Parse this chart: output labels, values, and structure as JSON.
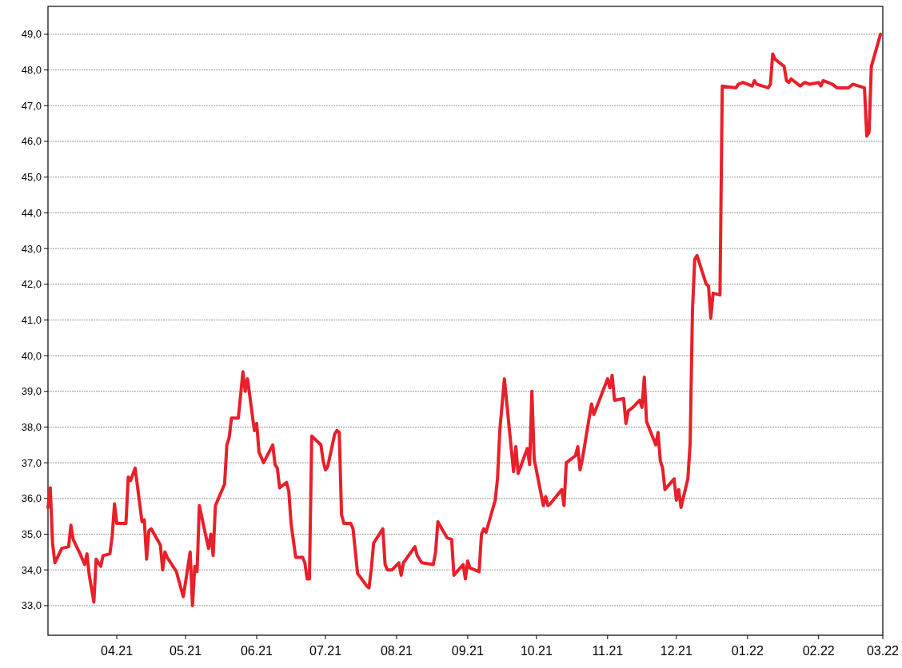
{
  "chart_data": {
    "type": "line",
    "x": [
      "2021-03-02",
      "2021-03-03",
      "2021-03-04",
      "2021-03-05",
      "2021-03-08",
      "2021-03-11",
      "2021-03-12",
      "2021-03-13",
      "2021-03-16",
      "2021-03-18",
      "2021-03-19",
      "2021-03-20",
      "2021-03-22",
      "2021-03-23",
      "2021-03-25",
      "2021-03-26",
      "2021-03-29",
      "2021-03-30",
      "2021-03-31",
      "2021-04-01",
      "2021-04-05",
      "2021-04-06",
      "2021-04-07",
      "2021-04-09",
      "2021-04-12",
      "2021-04-13",
      "2021-04-14",
      "2021-04-15",
      "2021-04-16",
      "2021-04-20",
      "2021-04-21",
      "2021-04-22",
      "2021-04-23",
      "2021-04-26",
      "2021-04-27",
      "2021-04-30",
      "2021-05-03",
      "2021-05-04",
      "2021-05-05",
      "2021-05-06",
      "2021-05-07",
      "2021-05-11",
      "2021-05-12",
      "2021-05-13",
      "2021-05-14",
      "2021-05-18",
      "2021-05-19",
      "2021-05-20",
      "2021-05-21",
      "2021-05-24",
      "2021-05-26",
      "2021-05-27",
      "2021-05-28",
      "2021-05-31",
      "2021-06-01",
      "2021-06-02",
      "2021-06-04",
      "2021-06-08",
      "2021-06-09",
      "2021-06-10",
      "2021-06-11",
      "2021-06-14",
      "2021-06-15",
      "2021-06-16",
      "2021-06-18",
      "2021-06-21",
      "2021-06-22",
      "2021-06-23",
      "2021-06-24",
      "2021-06-25",
      "2021-06-29",
      "2021-06-30",
      "2021-07-01",
      "2021-07-02",
      "2021-07-05",
      "2021-07-06",
      "2021-07-07",
      "2021-07-08",
      "2021-07-09",
      "2021-07-12",
      "2021-07-13",
      "2021-07-15",
      "2021-07-19",
      "2021-07-20",
      "2021-07-21",
      "2021-07-22",
      "2021-07-26",
      "2021-07-27",
      "2021-07-28",
      "2021-07-30",
      "2021-08-02",
      "2021-08-03",
      "2021-08-04",
      "2021-08-09",
      "2021-08-10",
      "2021-08-12",
      "2021-08-17",
      "2021-08-18",
      "2021-08-19",
      "2021-08-23",
      "2021-08-25",
      "2021-08-26",
      "2021-08-30",
      "2021-08-31",
      "2021-09-01",
      "2021-09-02",
      "2021-09-06",
      "2021-09-07",
      "2021-09-08",
      "2021-09-09",
      "2021-09-13",
      "2021-09-14",
      "2021-09-15",
      "2021-09-17",
      "2021-09-21",
      "2021-09-22",
      "2021-09-23",
      "2021-09-27",
      "2021-09-28",
      "2021-09-29",
      "2021-09-30",
      "2021-10-04",
      "2021-10-05",
      "2021-10-06",
      "2021-10-07",
      "2021-10-12",
      "2021-10-13",
      "2021-10-14",
      "2021-10-18",
      "2021-10-19",
      "2021-10-20",
      "2021-10-21",
      "2021-10-25",
      "2021-10-26",
      "2021-11-01",
      "2021-11-02",
      "2021-11-03",
      "2021-11-04",
      "2021-11-08",
      "2021-11-09",
      "2021-11-10",
      "2021-11-12",
      "2021-11-15",
      "2021-11-16",
      "2021-11-17",
      "2021-11-18",
      "2021-11-22",
      "2021-11-23",
      "2021-11-24",
      "2021-11-25",
      "2021-11-26",
      "2021-11-30",
      "2021-12-01",
      "2021-12-02",
      "2021-12-03",
      "2021-12-06",
      "2021-12-07",
      "2021-12-08",
      "2021-12-09",
      "2021-12-10",
      "2021-12-14",
      "2021-12-15",
      "2021-12-16",
      "2021-12-17",
      "2021-12-20",
      "2021-12-21",
      "2021-12-27",
      "2021-12-28",
      "2021-12-30",
      "2022-01-03",
      "2022-01-04",
      "2022-01-05",
      "2022-01-10",
      "2022-01-11",
      "2022-01-12",
      "2022-01-13",
      "2022-01-17",
      "2022-01-18",
      "2022-01-19",
      "2022-01-20",
      "2022-01-24",
      "2022-01-26",
      "2022-01-28",
      "2022-02-01",
      "2022-02-02",
      "2022-02-03",
      "2022-02-07",
      "2022-02-09",
      "2022-02-14",
      "2022-02-16",
      "2022-02-21",
      "2022-02-22",
      "2022-02-23",
      "2022-02-24",
      "2022-02-28"
    ],
    "series": [
      {
        "color": "#e8202a",
        "values": [
          35.75,
          36.3,
          34.75,
          34.2,
          34.6,
          34.65,
          35.25,
          34.85,
          34.45,
          34.15,
          34.45,
          33.85,
          33.1,
          34.3,
          34.1,
          34.4,
          34.45,
          34.95,
          35.85,
          35.3,
          35.3,
          36.6,
          36.5,
          36.85,
          35.35,
          35.4,
          34.3,
          35.1,
          35.15,
          34.7,
          34.0,
          34.5,
          34.35,
          34.05,
          33.95,
          33.25,
          34.5,
          33.0,
          34.1,
          33.95,
          35.8,
          34.6,
          35.0,
          34.4,
          35.8,
          36.4,
          37.5,
          37.7,
          38.25,
          38.25,
          39.55,
          39.0,
          39.35,
          37.9,
          38.1,
          37.3,
          37.0,
          37.5,
          36.95,
          36.85,
          36.3,
          36.45,
          36.2,
          35.3,
          34.35,
          34.35,
          34.2,
          33.75,
          33.75,
          37.75,
          37.5,
          37.05,
          36.8,
          36.9,
          37.8,
          37.9,
          37.85,
          35.55,
          35.3,
          35.3,
          35.15,
          33.9,
          33.55,
          33.5,
          34.05,
          34.75,
          35.15,
          34.15,
          34.0,
          34.0,
          34.2,
          33.85,
          34.2,
          34.65,
          34.4,
          34.2,
          34.15,
          34.5,
          35.35,
          34.9,
          34.85,
          33.85,
          34.15,
          33.75,
          34.25,
          34.05,
          33.95,
          35.0,
          35.15,
          35.05,
          35.95,
          36.55,
          37.9,
          39.35,
          36.75,
          37.45,
          36.7,
          37.4,
          36.95,
          39.0,
          37.1,
          35.8,
          36.05,
          35.8,
          35.85,
          36.25,
          35.8,
          37.0,
          37.2,
          37.45,
          36.8,
          37.1,
          38.65,
          38.35,
          39.35,
          39.1,
          39.45,
          38.75,
          38.8,
          38.1,
          38.45,
          38.55,
          38.75,
          38.55,
          39.4,
          38.15,
          37.5,
          37.85,
          37.05,
          36.85,
          36.25,
          36.55,
          35.95,
          36.25,
          35.75,
          36.55,
          37.55,
          41.25,
          42.7,
          42.8,
          42.0,
          41.95,
          41.05,
          41.75,
          41.7,
          47.55,
          47.5,
          47.6,
          47.65,
          47.55,
          47.7,
          47.6,
          47.5,
          47.6,
          48.45,
          48.3,
          48.1,
          47.7,
          47.65,
          47.75,
          47.55,
          47.65,
          47.6,
          47.65,
          47.55,
          47.7,
          47.6,
          47.5,
          47.5,
          47.6,
          47.5,
          46.15,
          46.25,
          48.1,
          49.0
        ]
      }
    ],
    "xlim": [
      "2021-03-02",
      "2022-03-01"
    ],
    "xticks": [
      {
        "value": "2021-04-01",
        "label": "04.21"
      },
      {
        "value": "2021-05-01",
        "label": "05.21"
      },
      {
        "value": "2021-06-01",
        "label": "06.21"
      },
      {
        "value": "2021-07-01",
        "label": "07.21"
      },
      {
        "value": "2021-08-01",
        "label": "08.21"
      },
      {
        "value": "2021-09-01",
        "label": "09.21"
      },
      {
        "value": "2021-10-01",
        "label": "10.21"
      },
      {
        "value": "2021-11-01",
        "label": "11.21"
      },
      {
        "value": "2021-12-01",
        "label": "12.21"
      },
      {
        "value": "2022-01-01",
        "label": "01.22"
      },
      {
        "value": "2022-02-01",
        "label": "02.22"
      },
      {
        "value": "2022-03-01",
        "label": "03.22"
      }
    ],
    "ylim": [
      32.17,
      49.78
    ],
    "yticks": [
      {
        "value": 33,
        "label": "33,0"
      },
      {
        "value": 34,
        "label": "34,0"
      },
      {
        "value": 35,
        "label": "35,0"
      },
      {
        "value": 36,
        "label": "36,0"
      },
      {
        "value": 37,
        "label": "37,0"
      },
      {
        "value": 38,
        "label": "38,0"
      },
      {
        "value": 39,
        "label": "39,0"
      },
      {
        "value": 40,
        "label": "40,0"
      },
      {
        "value": 41,
        "label": "41,0"
      },
      {
        "value": 42,
        "label": "42,0"
      },
      {
        "value": 43,
        "label": "43,0"
      },
      {
        "value": 44,
        "label": "44,0"
      },
      {
        "value": 45,
        "label": "45,0"
      },
      {
        "value": 46,
        "label": "46,0"
      },
      {
        "value": 47,
        "label": "47,0"
      },
      {
        "value": 48,
        "label": "48,0"
      },
      {
        "value": 49,
        "label": "49,0"
      }
    ],
    "grid": "y"
  }
}
